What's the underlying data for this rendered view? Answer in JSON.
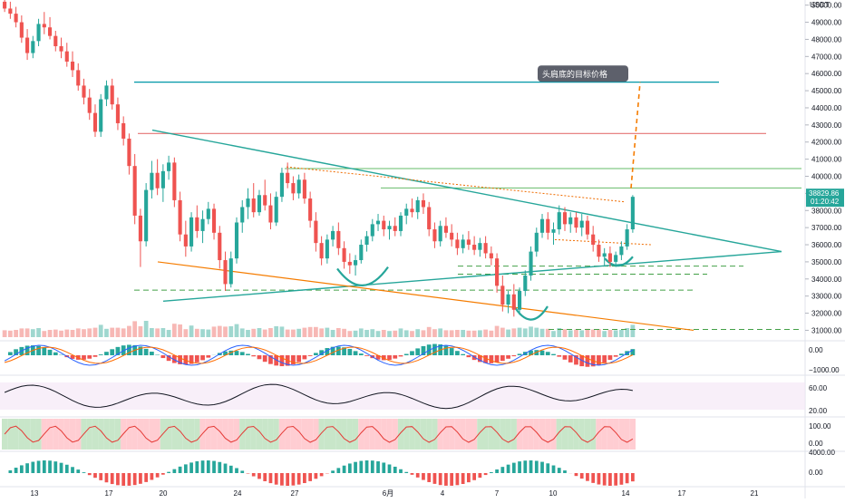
{
  "chart_data": {
    "type": "candlestick",
    "currency": "USDT",
    "y_ticks": [
      31000,
      32000,
      33000,
      34000,
      35000,
      36000,
      37000,
      38000,
      39000,
      40000,
      41000,
      42000,
      43000,
      44000,
      45000,
      46000,
      47000,
      48000,
      49000,
      50000
    ],
    "ylim": [
      30600,
      50300
    ],
    "x_ticks": [
      "13",
      "17",
      "20",
      "24",
      "27",
      "6月",
      "4",
      "7",
      "10",
      "14",
      "17",
      "21"
    ],
    "price_label": "38829.86",
    "countdown": "01:20:42",
    "annotation": "头肩底的目标价格",
    "macd_ticks": [
      "0.00",
      "−1000.00"
    ],
    "rsi_ticks": [
      "60.00",
      "20.00"
    ],
    "stoch_ticks": [
      "100.00",
      "0.00"
    ],
    "osc_ticks": [
      "4000.00",
      "0.00"
    ],
    "candles": [
      [
        50200,
        50500,
        49600,
        49800
      ],
      [
        49800,
        50200,
        49200,
        49500
      ],
      [
        49500,
        49900,
        48700,
        49000
      ],
      [
        49000,
        49400,
        47800,
        48100
      ],
      [
        48100,
        48600,
        46800,
        47200
      ],
      [
        47200,
        48200,
        46900,
        47900
      ],
      [
        47900,
        49200,
        47600,
        48900
      ],
      [
        48900,
        49600,
        48300,
        48700
      ],
      [
        48700,
        49300,
        48000,
        48200
      ],
      [
        48200,
        48500,
        47300,
        47600
      ],
      [
        47600,
        48100,
        46900,
        47300
      ],
      [
        47300,
        47800,
        46400,
        46700
      ],
      [
        46700,
        47300,
        45800,
        46200
      ],
      [
        46200,
        46600,
        45000,
        45300
      ],
      [
        45300,
        45700,
        44200,
        44600
      ],
      [
        44600,
        45100,
        43300,
        43700
      ],
      [
        43700,
        44200,
        42300,
        42600
      ],
      [
        42600,
        44800,
        42300,
        44500
      ],
      [
        44500,
        45600,
        44100,
        45300
      ],
      [
        45300,
        45700,
        43900,
        44200
      ],
      [
        44200,
        44600,
        42700,
        43100
      ],
      [
        43100,
        43500,
        41800,
        42200
      ],
      [
        42200,
        42500,
        40100,
        40600
      ],
      [
        40600,
        41300,
        37200,
        37700
      ],
      [
        37700,
        38100,
        34700,
        36200
      ],
      [
        36200,
        39600,
        35900,
        39200
      ],
      [
        39200,
        40900,
        38700,
        40200
      ],
      [
        40200,
        41000,
        38900,
        39300
      ],
      [
        39300,
        40700,
        38500,
        40300
      ],
      [
        40300,
        41200,
        39800,
        40800
      ],
      [
        40800,
        41100,
        38200,
        38600
      ],
      [
        38600,
        39100,
        36200,
        36600
      ],
      [
        36600,
        37400,
        35300,
        35900
      ],
      [
        35900,
        37900,
        35600,
        37600
      ],
      [
        37600,
        38300,
        36400,
        36800
      ],
      [
        36800,
        38000,
        36100,
        37500
      ],
      [
        37500,
        38500,
        37200,
        38100
      ],
      [
        38100,
        38400,
        36300,
        36700
      ],
      [
        36700,
        37100,
        34600,
        35100
      ],
      [
        35100,
        35600,
        33300,
        33700
      ],
      [
        33700,
        35600,
        33500,
        35200
      ],
      [
        35200,
        37600,
        34900,
        37300
      ],
      [
        37300,
        38600,
        36700,
        38200
      ],
      [
        38200,
        39300,
        37500,
        38700
      ],
      [
        38700,
        39600,
        37600,
        37900
      ],
      [
        37900,
        39200,
        37700,
        38900
      ],
      [
        38900,
        39800,
        38000,
        38300
      ],
      [
        38300,
        39000,
        36900,
        37300
      ],
      [
        37300,
        39100,
        37100,
        38800
      ],
      [
        38800,
        40500,
        38500,
        40200
      ],
      [
        40200,
        40800,
        39300,
        39600
      ],
      [
        39600,
        40000,
        38600,
        39000
      ],
      [
        39000,
        40100,
        38700,
        39800
      ],
      [
        39800,
        40200,
        38400,
        38700
      ],
      [
        38700,
        39100,
        37000,
        37400
      ],
      [
        37400,
        37900,
        35600,
        36100
      ],
      [
        36100,
        36500,
        34800,
        35200
      ],
      [
        35200,
        36600,
        34900,
        36300
      ],
      [
        36300,
        37100,
        35900,
        36800
      ],
      [
        36800,
        37300,
        35400,
        35800
      ],
      [
        35800,
        36200,
        34600,
        35000
      ],
      [
        35000,
        35500,
        34300,
        34800
      ],
      [
        34800,
        35400,
        34200,
        35100
      ],
      [
        35100,
        36300,
        34900,
        36000
      ],
      [
        36000,
        36800,
        35600,
        36500
      ],
      [
        36500,
        37500,
        36200,
        37200
      ],
      [
        37200,
        37800,
        36800,
        37400
      ],
      [
        37400,
        37700,
        36500,
        36900
      ],
      [
        36900,
        37400,
        36300,
        37100
      ],
      [
        37100,
        37600,
        36500,
        36800
      ],
      [
        36800,
        37900,
        36500,
        37700
      ],
      [
        37700,
        38400,
        37200,
        38100
      ],
      [
        38100,
        38700,
        37600,
        37900
      ],
      [
        37900,
        38800,
        37500,
        38600
      ],
      [
        38600,
        39000,
        37800,
        38200
      ],
      [
        38200,
        38500,
        36500,
        36900
      ],
      [
        36900,
        37300,
        35800,
        36200
      ],
      [
        36200,
        37400,
        35900,
        37100
      ],
      [
        37100,
        37600,
        36400,
        36700
      ],
      [
        36700,
        37200,
        35900,
        36300
      ],
      [
        36300,
        36700,
        35400,
        35800
      ],
      [
        35800,
        36600,
        35500,
        36300
      ],
      [
        36300,
        36800,
        35700,
        36000
      ],
      [
        36000,
        36500,
        35400,
        35700
      ],
      [
        35700,
        36400,
        35300,
        36100
      ],
      [
        36100,
        36500,
        35200,
        35500
      ],
      [
        35500,
        35900,
        34800,
        35200
      ],
      [
        35200,
        35500,
        33200,
        33600
      ],
      [
        33600,
        34200,
        32100,
        32500
      ],
      [
        32500,
        33300,
        32000,
        33100
      ],
      [
        33100,
        33700,
        31800,
        32200
      ],
      [
        32200,
        33500,
        31900,
        33300
      ],
      [
        33300,
        34500,
        33000,
        34200
      ],
      [
        34200,
        35900,
        33900,
        35600
      ],
      [
        35600,
        37000,
        35300,
        36700
      ],
      [
        36700,
        37800,
        36400,
        37500
      ],
      [
        37500,
        37900,
        36300,
        36700
      ],
      [
        36700,
        37300,
        36000,
        36900
      ],
      [
        36900,
        38300,
        36600,
        37900
      ],
      [
        37900,
        38200,
        36800,
        37200
      ],
      [
        37200,
        37900,
        36700,
        37600
      ],
      [
        37600,
        37900,
        36700,
        37000
      ],
      [
        37000,
        37800,
        36500,
        37400
      ],
      [
        37400,
        37700,
        36300,
        36600
      ],
      [
        36600,
        37100,
        35600,
        36000
      ],
      [
        36000,
        36300,
        35000,
        35300
      ],
      [
        35300,
        35800,
        34800,
        35500
      ],
      [
        35500,
        35900,
        34700,
        35000
      ],
      [
        35000,
        35600,
        34700,
        35400
      ],
      [
        35400,
        36200,
        35100,
        35900
      ],
      [
        35900,
        37200,
        35700,
        36900
      ],
      [
        36900,
        38900,
        36700,
        38800
      ]
    ]
  }
}
